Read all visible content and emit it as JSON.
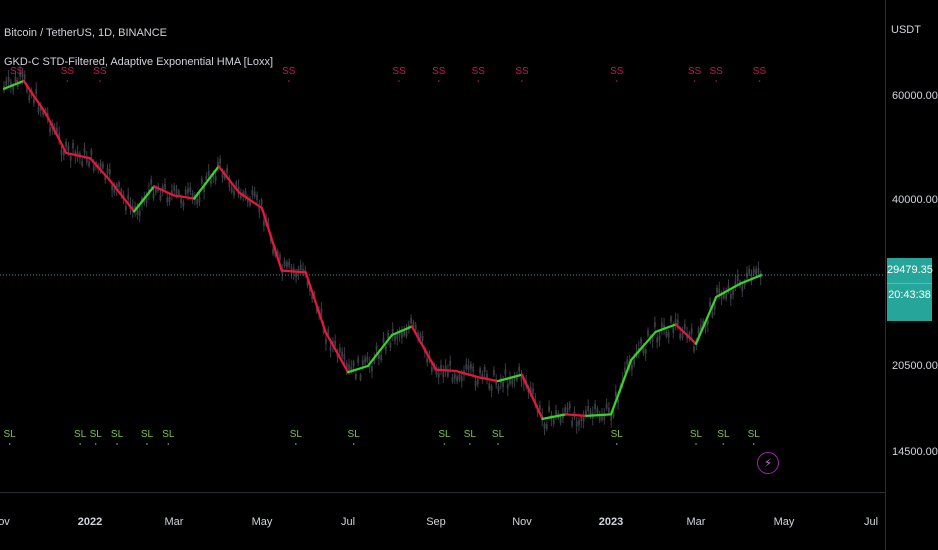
{
  "header": {
    "symbol_title": "Bitcoin / TetherUS, 1D, BINANCE",
    "indicator_title": "GKD-C STD-Filtered, Adaptive Exponential HMA [Loxx]"
  },
  "axis": {
    "currency": "USDT",
    "price_labels": [
      "60000.00",
      "40000.00",
      "20500.00",
      "14500.00"
    ],
    "time_labels": [
      "ov",
      "2022",
      "Mar",
      "May",
      "Jul",
      "Sep",
      "Nov",
      "2023",
      "Mar",
      "May",
      "Jul"
    ]
  },
  "last_price": {
    "value": "29479.35",
    "countdown": "20:43:38"
  },
  "signals": {
    "top_label": "SS",
    "bottom_label": "SL"
  },
  "colors": {
    "background": "#000000",
    "up_line": "#39d42a",
    "down_line": "#e8163c",
    "candles": "#3a3f45",
    "ss_text": "#c2185b",
    "sl_text": "#7cc83a",
    "price_line": "#26a69a"
  },
  "icons": {
    "alert": "lightning-icon"
  },
  "chart_data": {
    "type": "line",
    "title": "Bitcoin / TetherUS, 1D, BINANCE",
    "xlabel": "",
    "ylabel": "USDT",
    "ylim_ticks": [
      14500,
      20500,
      40000,
      60000
    ],
    "y_scale": "log",
    "x": [
      "2021-11-01",
      "2021-11-15",
      "2021-12-01",
      "2021-12-15",
      "2022-01-01",
      "2022-01-15",
      "2022-02-01",
      "2022-02-15",
      "2022-03-01",
      "2022-03-15",
      "2022-04-01",
      "2022-04-15",
      "2022-05-01",
      "2022-05-15",
      "2022-06-01",
      "2022-06-15",
      "2022-07-01",
      "2022-07-15",
      "2022-08-01",
      "2022-08-15",
      "2022-09-01",
      "2022-09-15",
      "2022-10-01",
      "2022-10-15",
      "2022-11-01",
      "2022-11-15",
      "2022-12-01",
      "2022-12-15",
      "2023-01-01",
      "2023-01-15",
      "2023-02-01",
      "2023-02-15",
      "2023-03-01",
      "2023-03-15",
      "2023-04-01",
      "2023-04-15"
    ],
    "series": [
      {
        "values": [
          62000,
          64000,
          56000,
          48000,
          47000,
          43000,
          38000,
          42000,
          40500,
          40000,
          45500,
          41000,
          38500,
          30000,
          29800,
          23500,
          20000,
          20500,
          23200,
          24000,
          20200,
          20100,
          19600,
          19300,
          19800,
          16600,
          16900,
          16800,
          16900,
          21000,
          23500,
          24200,
          22400,
          27000,
          28500,
          29450
        ]
      }
    ],
    "ss_signal_dates": [
      "2021-11-10",
      "2021-12-16",
      "2022-01-08",
      "2022-05-20",
      "2022-08-06",
      "2022-09-03",
      "2022-10-01",
      "2022-11-01",
      "2023-01-05",
      "2023-02-28",
      "2023-03-15",
      "2023-04-14"
    ],
    "sl_signal_dates": [
      "2021-11-05",
      "2021-12-25",
      "2022-01-05",
      "2022-01-20",
      "2022-02-10",
      "2022-02-25",
      "2022-05-25",
      "2022-07-05",
      "2022-09-07",
      "2022-09-25",
      "2022-10-15",
      "2023-01-05",
      "2023-03-01",
      "2023-03-20",
      "2023-04-10"
    ],
    "last_price": 29479.35
  }
}
